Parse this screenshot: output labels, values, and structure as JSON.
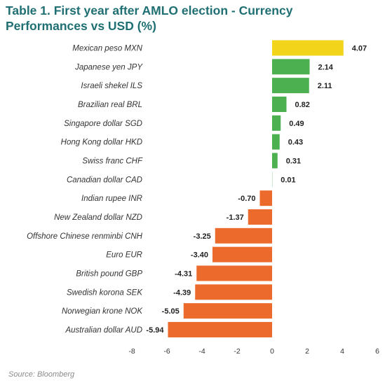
{
  "title": "Table 1. First year after AMLO election - Currency Performances vs USD (%)",
  "source": "Source: Bloomberg",
  "chart_data": {
    "type": "bar",
    "orientation": "horizontal",
    "title": "Table 1. First year after AMLO election - Currency Performances vs USD (%)",
    "categories": [
      "Mexican peso MXN",
      "Japanese yen JPY",
      "Israeli shekel ILS",
      "Brazilian real BRL",
      "Singapore dollar SGD",
      "Hong Kong dollar HKD",
      "Swiss franc CHF",
      "Canadian dollar CAD",
      "Indian rupee INR",
      "New Zealand dollar NZD",
      "Offshore Chinese renminbi CNH",
      "Euro EUR",
      "British pound GBP",
      "Swedish korona SEK",
      "Norwegian krone NOK",
      "Australian dollar AUD"
    ],
    "values": [
      4.07,
      2.14,
      2.11,
      0.82,
      0.49,
      0.43,
      0.31,
      0.01,
      -0.7,
      -1.37,
      -3.25,
      -3.4,
      -4.31,
      -4.39,
      -5.05,
      -5.94
    ],
    "value_labels": [
      "4.07",
      "2.14",
      "2.11",
      "0.82",
      "0.49",
      "0.43",
      "0.31",
      "0.01",
      "-0.70",
      "-1.37",
      "-3.25",
      "-3.40",
      "-4.31",
      "-4.39",
      "-5.05",
      "-5.94"
    ],
    "xlim": [
      -8,
      6
    ],
    "xticks": [
      -8,
      -6,
      -4,
      -2,
      0,
      2,
      4,
      6
    ],
    "xtick_labels": [
      "-8",
      "-6",
      "-4",
      "-2",
      "0",
      "2",
      "4",
      "6"
    ],
    "xlabel": "",
    "ylabel": "",
    "grid": false,
    "legend": "none",
    "colors": {
      "highlight": "#f2d41a",
      "positive": "#4caf50",
      "negative": "#ec6a2c",
      "title": "#1f6f73"
    }
  }
}
